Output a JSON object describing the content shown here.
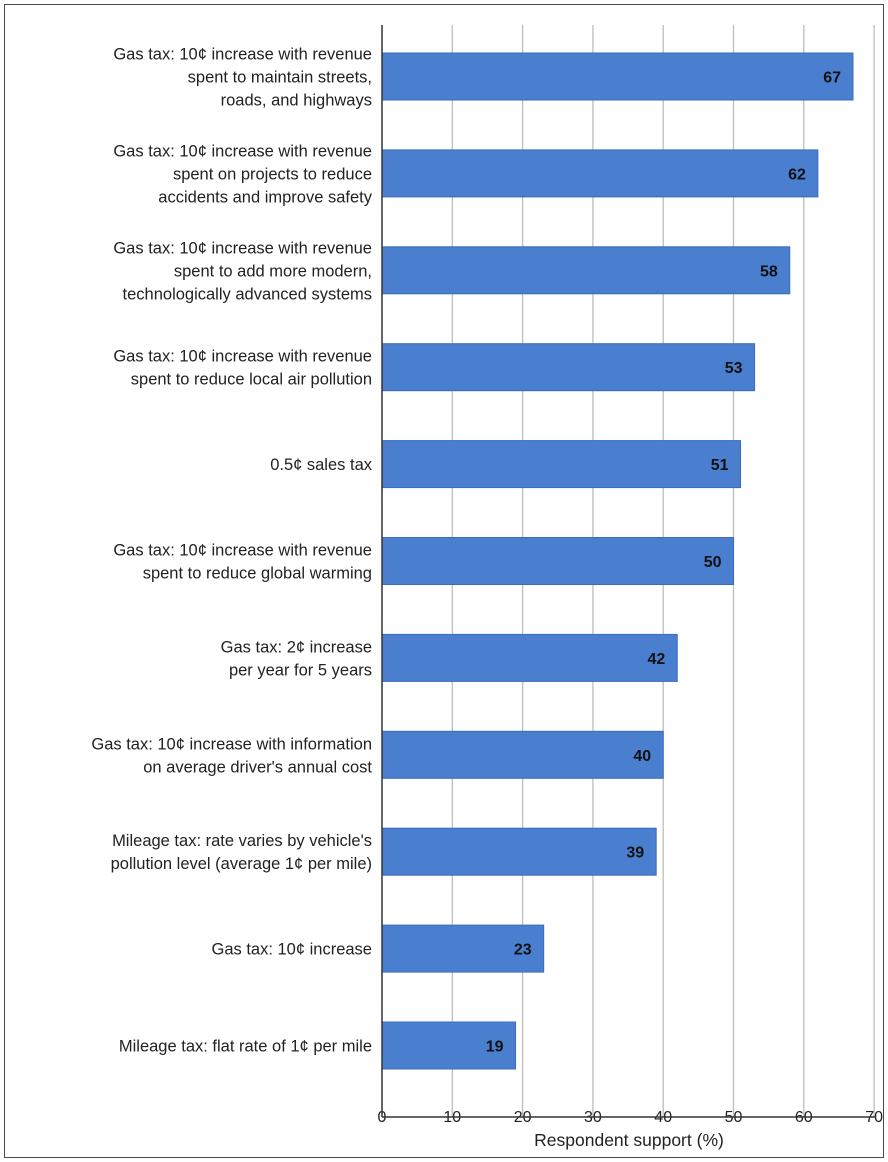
{
  "chart_data": {
    "type": "bar",
    "orientation": "horizontal",
    "categories": [
      [
        "Gas tax: 10¢ increase with revenue",
        "spent to maintain streets,",
        "roads, and highways"
      ],
      [
        "Gas tax: 10¢ increase with revenue",
        "spent on projects to reduce",
        "accidents and improve safety"
      ],
      [
        "Gas tax: 10¢ increase with revenue",
        "spent to add more modern,",
        "technologically advanced systems"
      ],
      [
        "Gas tax: 10¢ increase with revenue",
        "spent to reduce local air pollution"
      ],
      [
        "0.5¢ sales tax"
      ],
      [
        "Gas tax: 10¢ increase with revenue",
        "spent to reduce global warming"
      ],
      [
        "Gas tax: 2¢ increase",
        "per year for 5 years"
      ],
      [
        "Gas tax: 10¢ increase with information",
        "on average driver's annual cost"
      ],
      [
        "Mileage tax: rate varies by vehicle's",
        "pollution level (average 1¢ per mile)"
      ],
      [
        "Gas tax: 10¢ increase"
      ],
      [
        "Mileage tax: flat rate of 1¢ per mile"
      ]
    ],
    "values": [
      67,
      62,
      58,
      53,
      51,
      50,
      42,
      40,
      39,
      23,
      19
    ],
    "data_labels": [
      "67",
      "62",
      "58",
      "53",
      "51",
      "50",
      "42",
      "40",
      "39",
      "23",
      "19"
    ],
    "xlabel": "Respondent support (%)",
    "xlim": [
      0,
      70
    ],
    "xticks": [
      "0",
      "10",
      "20",
      "30",
      "40",
      "50",
      "60",
      "70"
    ],
    "grid": "vertical",
    "colors": {
      "bar": "#4a7fd0",
      "bar_edge": "#3a6cba",
      "grid": "#bdbdbd",
      "axis": "#333333"
    }
  }
}
